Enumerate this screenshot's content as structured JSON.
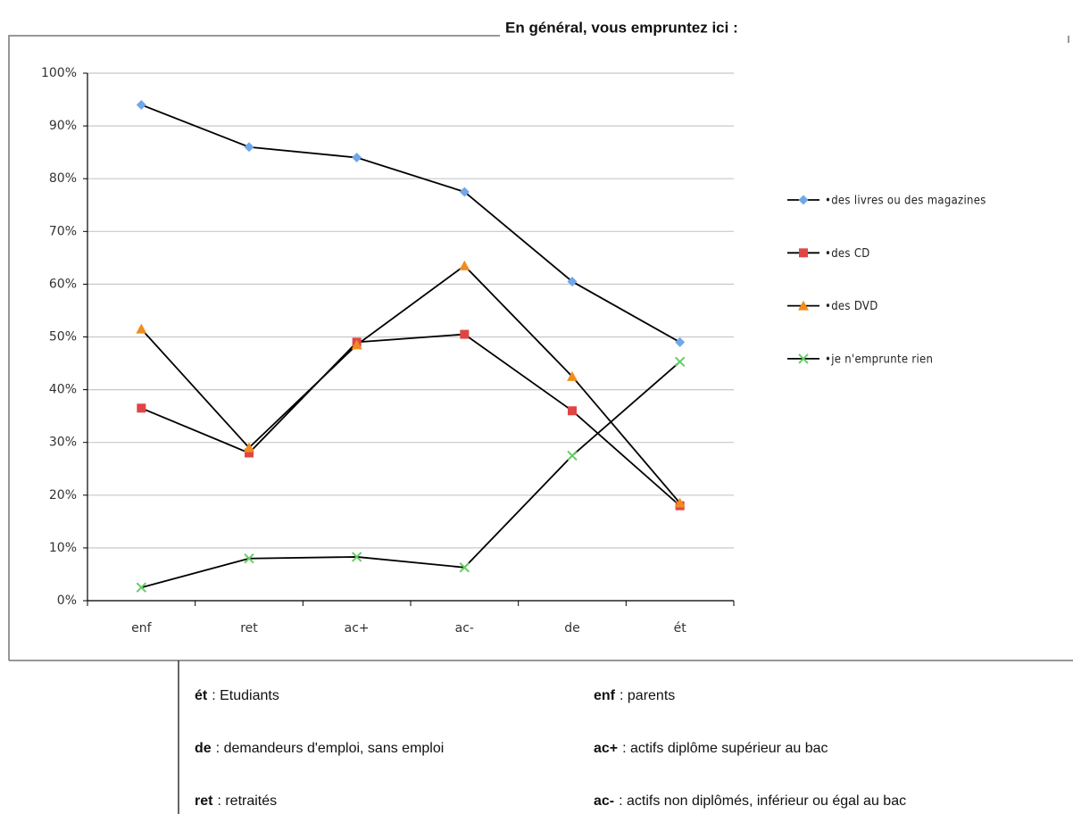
{
  "chart_data": {
    "type": "line",
    "title": "En général, vous empruntez ici :",
    "categories": [
      "enf",
      "ret",
      "ac+",
      "ac-",
      "de",
      "ét"
    ],
    "ylim": [
      0,
      100
    ],
    "yticks": [
      {
        "value": 0,
        "label": "0%"
      },
      {
        "value": 10,
        "label": "10%"
      },
      {
        "value": 20,
        "label": "20%"
      },
      {
        "value": 30,
        "label": "30%"
      },
      {
        "value": 40,
        "label": "40%"
      },
      {
        "value": 50,
        "label": "50%"
      },
      {
        "value": 60,
        "label": "60%"
      },
      {
        "value": 70,
        "label": "70%"
      },
      {
        "value": 80,
        "label": "80%"
      },
      {
        "value": 90,
        "label": "90%"
      },
      {
        "value": 100,
        "label": "100%"
      }
    ],
    "grid": true,
    "legend": "right",
    "line_color": "#000000",
    "series": [
      {
        "name": "•des livres ou des magazines",
        "color": "#6fa8e8",
        "marker": "diamond",
        "values": [
          94,
          86,
          84,
          77.5,
          60.5,
          49
        ]
      },
      {
        "name": "•des CD",
        "color": "#e04545",
        "marker": "square",
        "values": [
          36.5,
          28,
          49,
          50.5,
          36,
          18
        ]
      },
      {
        "name": "•des DVD",
        "color": "#f08c1e",
        "marker": "triangle",
        "values": [
          51.5,
          29,
          48.5,
          63.5,
          42.5,
          18.5
        ]
      },
      {
        "name": "•je n'emprunte rien",
        "color": "#66cc66",
        "marker": "x",
        "values": [
          2.5,
          8,
          8.3,
          6.3,
          27.5,
          45.3
        ]
      }
    ]
  },
  "notes": [
    {
      "abbr": "ét",
      "text": ": Etudiants"
    },
    {
      "abbr": "enf",
      "text": ": parents"
    },
    {
      "abbr": "de",
      "text": ": demandeurs d'emploi, sans emploi"
    },
    {
      "abbr": "ac+",
      "text": ": actifs diplôme supérieur au bac"
    },
    {
      "abbr": "ret",
      "text": ": retraités"
    },
    {
      "abbr": "ac-",
      "text": ": actifs non diplômés, inférieur ou égal au bac"
    }
  ]
}
